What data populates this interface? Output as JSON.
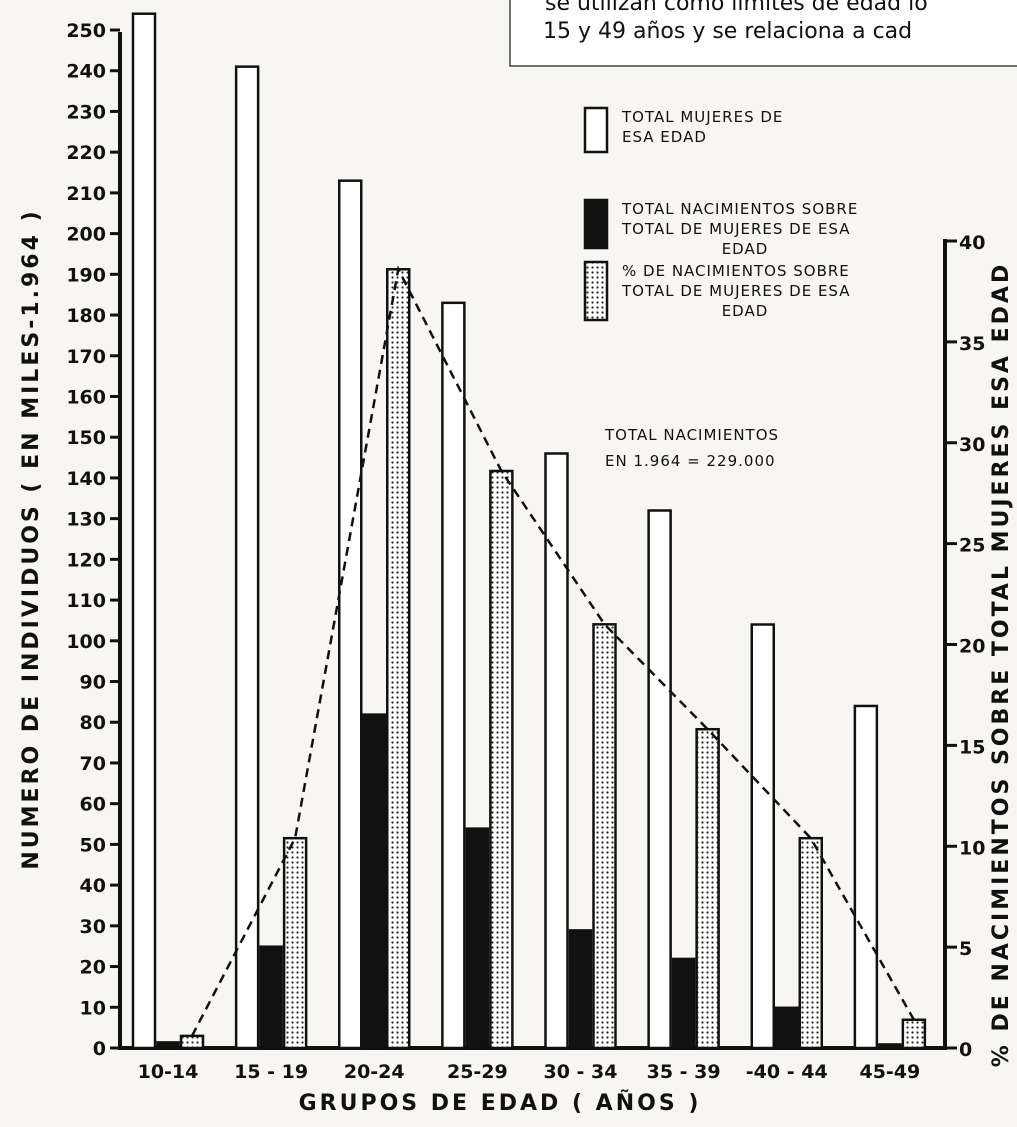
{
  "top_text": {
    "line1": "se utilizan como límites de edad lo",
    "line2": "15 y 49 años y se relaciona a cad"
  },
  "chart_data": {
    "type": "bar",
    "title": "",
    "xlabel": "GRUPOS DE EDAD   ( AÑOS )",
    "ylabel_left": "NUMERO DE INDIVIDUOS   ( EN MILES-1.964 )",
    "ylabel_right": "% DE NACIMIENTOS SOBRE TOTAL MUJERES ESA EDAD",
    "categories": [
      "10-14",
      "15 - 19",
      "20-24",
      "25-29",
      "30 - 34",
      "35 - 39",
      "-40 - 44",
      "45-49"
    ],
    "ylim_left": [
      0,
      250
    ],
    "ylim_right": [
      0,
      40
    ],
    "left_ticks": [
      0,
      10,
      20,
      30,
      40,
      50,
      60,
      70,
      80,
      90,
      100,
      110,
      120,
      130,
      140,
      150,
      160,
      170,
      180,
      190,
      200,
      210,
      220,
      230,
      240,
      250
    ],
    "left_tick_labels": [
      "0",
      "10",
      "20",
      "30",
      "40",
      "50",
      "60",
      "70",
      "80",
      "90",
      "100",
      "110",
      "120",
      "130",
      "140",
      "150",
      "160",
      "170",
      "180",
      "190",
      "200",
      "210",
      "220",
      "230",
      "240",
      "250"
    ],
    "right_ticks": [
      0,
      5,
      10,
      15,
      20,
      25,
      30,
      35,
      40
    ],
    "right_tick_labels": [
      "0",
      "5",
      "10",
      "15",
      "20",
      "25",
      "30",
      "35",
      "40"
    ],
    "grid": false,
    "legend_position": "top-right",
    "series": [
      {
        "name": "TOTAL MUJERES DE ESA EDAD",
        "axis": "left",
        "style": "hollow",
        "values": [
          254,
          241,
          213,
          183,
          146,
          132,
          104,
          84
        ]
      },
      {
        "name": "TOTAL NACIMIENTOS SOBRE TOTAL DE MUJERES DE ESA EDAD",
        "axis": "left",
        "style": "solid",
        "values": [
          1.5,
          25,
          82,
          54,
          29,
          22,
          10,
          1
        ]
      },
      {
        "name": "% DE NACIMIENTOS SOBRE TOTAL DE MUJERES DE ESA EDAD",
        "axis": "right",
        "style": "dotted",
        "values": [
          0.6,
          10.4,
          38.6,
          28.6,
          21,
          15.8,
          10.4,
          1.4
        ]
      }
    ],
    "legend": [
      {
        "style": "hollow",
        "lines": [
          "TOTAL MUJERES DE",
          "ESA EDAD"
        ]
      },
      {
        "style": "solid",
        "lines": [
          "TOTAL NACIMIENTOS SOBRE",
          "TOTAL DE MUJERES DE ESA",
          "EDAD"
        ]
      },
      {
        "style": "dotted",
        "lines": [
          "% DE NACIMIENTOS SOBRE",
          "TOTAL DE MUJERES DE ESA",
          "EDAD"
        ]
      }
    ],
    "annotation": [
      "TOTAL NACIMIENTOS",
      "EN  1.964 = 229.000"
    ]
  }
}
